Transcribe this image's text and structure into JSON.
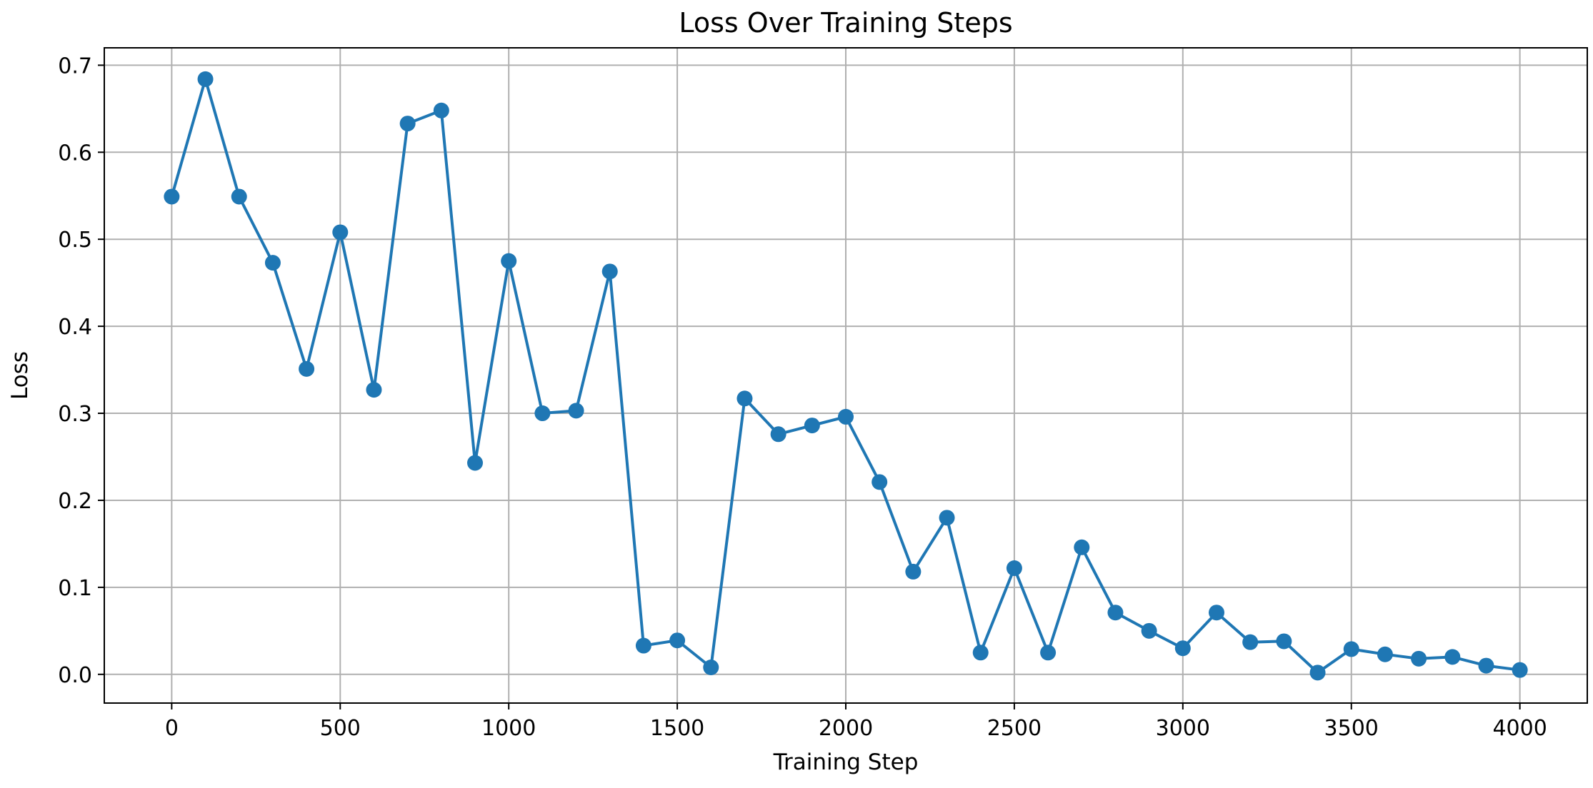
{
  "chart_data": {
    "type": "line",
    "title": "Loss Over Training Steps",
    "xlabel": "Training Step",
    "ylabel": "Loss",
    "xlim": [
      -200,
      4200
    ],
    "ylim": [
      -0.033,
      0.72
    ],
    "xticks": [
      0,
      500,
      1000,
      1500,
      2000,
      2500,
      3000,
      3500,
      4000
    ],
    "yticks": [
      0.0,
      0.1,
      0.2,
      0.3,
      0.4,
      0.5,
      0.6,
      0.7
    ],
    "ytick_labels": [
      "0.0",
      "0.1",
      "0.2",
      "0.3",
      "0.4",
      "0.5",
      "0.6",
      "0.7"
    ],
    "grid": true,
    "series": [
      {
        "color": "#1f77b4",
        "marker": "circle",
        "x": [
          0,
          100,
          200,
          300,
          400,
          500,
          600,
          700,
          800,
          900,
          1000,
          1100,
          1200,
          1300,
          1400,
          1500,
          1600,
          1700,
          1800,
          1900,
          2000,
          2100,
          2200,
          2300,
          2400,
          2500,
          2600,
          2700,
          2800,
          2900,
          3000,
          3100,
          3200,
          3300,
          3400,
          3500,
          3600,
          3700,
          3800,
          3900,
          4000
        ],
        "y": [
          0.549,
          0.684,
          0.549,
          0.473,
          0.351,
          0.508,
          0.327,
          0.633,
          0.648,
          0.243,
          0.475,
          0.3,
          0.303,
          0.463,
          0.033,
          0.039,
          0.008,
          0.317,
          0.276,
          0.286,
          0.296,
          0.221,
          0.118,
          0.18,
          0.025,
          0.122,
          0.025,
          0.146,
          0.071,
          0.05,
          0.03,
          0.071,
          0.037,
          0.038,
          0.002,
          0.029,
          0.023,
          0.018,
          0.02,
          0.01,
          0.005
        ]
      }
    ]
  }
}
